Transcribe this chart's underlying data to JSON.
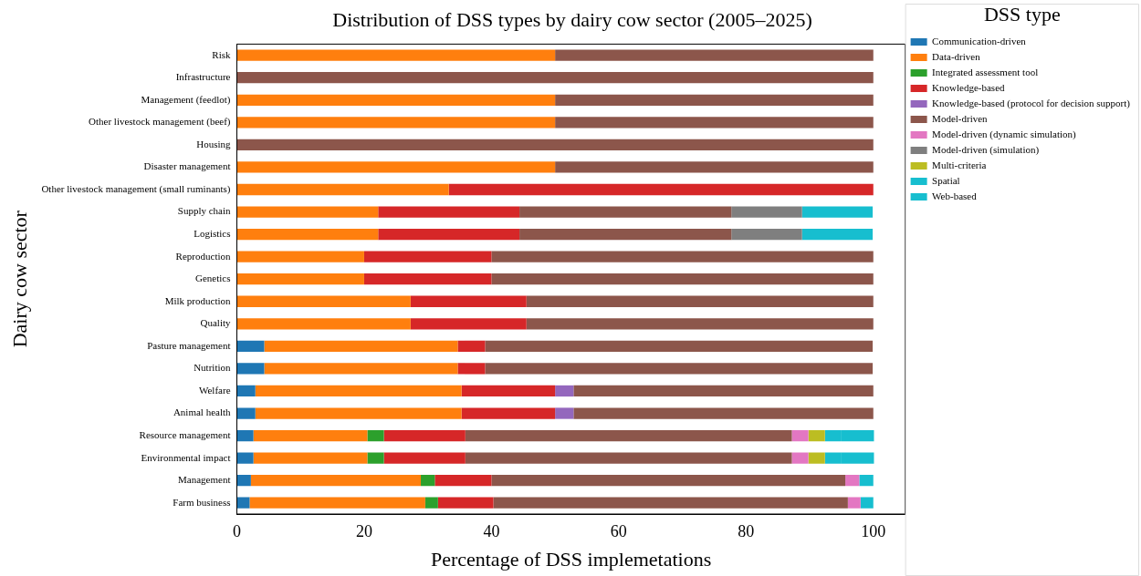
{
  "chart_data": {
    "type": "bar",
    "orientation": "horizontal",
    "stacked": true,
    "title": "Distribution of DSS types by dairy cow sector (2005–2025)",
    "xlabel": "Percentage of DSS implemetations",
    "ylabel": "Dairy cow sector",
    "legend_title": "DSS type",
    "legend": "top right",
    "grid": false,
    "categories": [
      "Risk",
      "Infrastructure",
      "Management (feedlot)",
      "Other livestock management (beef)",
      "Housing",
      "Disaster management",
      "Other livestock management (small ruminants)",
      "Supply chain",
      "Logistics",
      "Reproduction",
      "Genetics",
      "Milk production",
      "Quality",
      "Pasture management",
      "Nutrition",
      "Welfare",
      "Animal health",
      "Resource management",
      "Environmental impact",
      "Management",
      "Farm business"
    ],
    "xlim": [
      0,
      105
    ],
    "xticks": [
      0,
      20,
      40,
      60,
      80,
      100
    ],
    "series": [
      {
        "name": "Communication-driven",
        "color": "#1f77b4",
        "values": [
          null,
          null,
          null,
          null,
          null,
          null,
          null,
          null,
          null,
          null,
          null,
          null,
          null,
          4.3,
          4.3,
          2.9,
          2.9,
          2.6,
          2.6,
          2.2,
          2.0
        ]
      },
      {
        "name": "Data-driven",
        "color": "#ff7f0e",
        "values": [
          50,
          null,
          50,
          50,
          null,
          50,
          33.3,
          22.2,
          22.2,
          20,
          20,
          27.3,
          27.3,
          30.4,
          30.4,
          32.4,
          32.4,
          17.9,
          17.9,
          26.7,
          27.6
        ]
      },
      {
        "name": "Integrated assessment tool",
        "color": "#2ca02c",
        "values": [
          null,
          null,
          null,
          null,
          null,
          null,
          null,
          null,
          null,
          null,
          null,
          null,
          null,
          null,
          null,
          null,
          null,
          2.6,
          2.6,
          2.2,
          2.0
        ]
      },
      {
        "name": "Knowledge-based",
        "color": "#d62728",
        "values": [
          null,
          null,
          null,
          null,
          null,
          null,
          66.7,
          22.2,
          22.2,
          20,
          20,
          18.2,
          18.2,
          4.3,
          4.3,
          14.7,
          14.7,
          12.8,
          12.8,
          8.9,
          8.7
        ]
      },
      {
        "name": "Knowledge-based (protocol for decision support)",
        "color": "#9467bd",
        "values": [
          null,
          null,
          null,
          null,
          null,
          null,
          null,
          null,
          null,
          null,
          null,
          null,
          null,
          null,
          null,
          2.9,
          2.9,
          null,
          null,
          null,
          null
        ]
      },
      {
        "name": "Model-driven",
        "color": "#8c564b",
        "values": [
          50,
          100,
          50,
          50,
          100,
          50,
          null,
          33.3,
          33.3,
          60,
          60,
          54.5,
          54.5,
          60.9,
          60.9,
          47.1,
          47.1,
          51.3,
          51.3,
          55.6,
          55.7
        ]
      },
      {
        "name": "Model-driven (dynamic simulation)",
        "color": "#e377c2",
        "values": [
          null,
          null,
          null,
          null,
          null,
          null,
          null,
          null,
          null,
          null,
          null,
          null,
          null,
          null,
          null,
          null,
          null,
          2.6,
          2.6,
          2.2,
          2.0
        ]
      },
      {
        "name": "Model-driven (simulation)",
        "color": "#7f7f7f",
        "values": [
          null,
          null,
          null,
          null,
          null,
          null,
          null,
          11.1,
          11.1,
          null,
          null,
          null,
          null,
          null,
          null,
          null,
          null,
          null,
          null,
          null,
          null
        ]
      },
      {
        "name": "Multi-criteria",
        "color": "#bcbd22",
        "values": [
          null,
          null,
          null,
          null,
          null,
          null,
          null,
          null,
          null,
          null,
          null,
          null,
          null,
          null,
          null,
          null,
          null,
          2.6,
          2.6,
          null,
          null
        ]
      },
      {
        "name": "Spatial",
        "color": "#17becf",
        "values": [
          null,
          null,
          null,
          null,
          null,
          null,
          null,
          null,
          null,
          null,
          null,
          null,
          null,
          null,
          null,
          null,
          null,
          2.6,
          2.6,
          null,
          null
        ]
      },
      {
        "name": "Web-based",
        "color": "#17becf",
        "values": [
          null,
          null,
          null,
          null,
          null,
          null,
          null,
          11.1,
          11.1,
          null,
          null,
          null,
          null,
          null,
          null,
          null,
          null,
          5.1,
          5.1,
          2.2,
          2.0
        ]
      }
    ]
  }
}
